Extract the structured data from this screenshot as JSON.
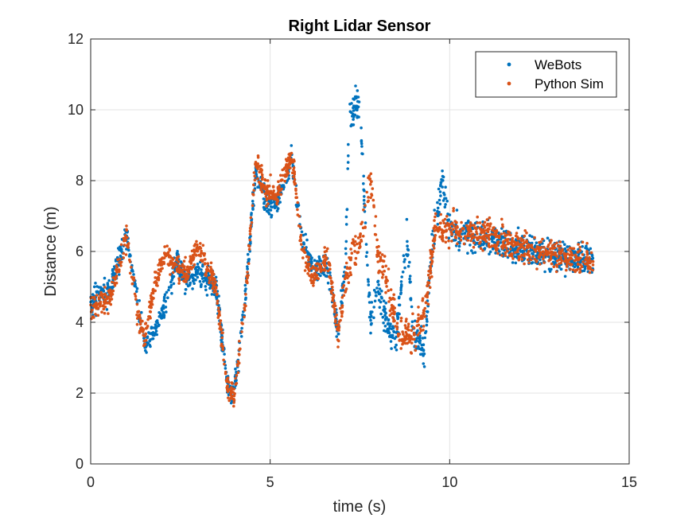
{
  "chart_data": {
    "type": "scatter",
    "title": "Right Lidar Sensor",
    "xlabel": "time (s)",
    "ylabel": "Distance (m)",
    "xlim": [
      0,
      15
    ],
    "ylim": [
      0,
      12
    ],
    "xticks": [
      0,
      5,
      10,
      15
    ],
    "yticks": [
      0,
      2,
      4,
      6,
      8,
      10,
      12
    ],
    "grid": true,
    "legend_position": "top-right",
    "series": [
      {
        "name": "WeBots",
        "color": "#0072BD",
        "approx_trend": [
          [
            0.0,
            4.6
          ],
          [
            0.5,
            4.8
          ],
          [
            1.0,
            6.5
          ],
          [
            1.3,
            4.6
          ],
          [
            1.5,
            3.4
          ],
          [
            1.8,
            3.8
          ],
          [
            2.1,
            4.5
          ],
          [
            2.4,
            5.7
          ],
          [
            2.7,
            5.1
          ],
          [
            3.0,
            5.4
          ],
          [
            3.5,
            5.0
          ],
          [
            3.8,
            2.3
          ],
          [
            4.0,
            1.9
          ],
          [
            4.3,
            4.7
          ],
          [
            4.6,
            8.3
          ],
          [
            4.9,
            7.3
          ],
          [
            5.2,
            7.4
          ],
          [
            5.6,
            8.6
          ],
          [
            5.9,
            6.3
          ],
          [
            6.2,
            5.5
          ],
          [
            6.6,
            5.5
          ],
          [
            6.9,
            3.7
          ],
          [
            7.1,
            5.6
          ],
          [
            7.2,
            9.8
          ],
          [
            7.5,
            10.3
          ],
          [
            7.6,
            7.8
          ],
          [
            7.8,
            4.0
          ],
          [
            8.0,
            5.0
          ],
          [
            8.2,
            4.1
          ],
          [
            8.5,
            3.5
          ],
          [
            8.8,
            6.5
          ],
          [
            9.0,
            3.6
          ],
          [
            9.3,
            3.2
          ],
          [
            9.5,
            6.0
          ],
          [
            9.8,
            8.0
          ],
          [
            10.0,
            6.6
          ],
          [
            11.0,
            6.4
          ],
          [
            12.0,
            6.1
          ],
          [
            13.0,
            5.9
          ],
          [
            14.0,
            5.7
          ]
        ]
      },
      {
        "name": "Python Sim",
        "color": "#D95319",
        "approx_trend": [
          [
            0.0,
            4.5
          ],
          [
            0.5,
            4.6
          ],
          [
            1.0,
            6.4
          ],
          [
            1.3,
            4.3
          ],
          [
            1.5,
            3.5
          ],
          [
            1.8,
            5.1
          ],
          [
            2.1,
            6.0
          ],
          [
            2.4,
            5.5
          ],
          [
            2.7,
            5.4
          ],
          [
            3.0,
            6.2
          ],
          [
            3.5,
            4.9
          ],
          [
            3.8,
            2.2
          ],
          [
            4.0,
            1.9
          ],
          [
            4.3,
            4.5
          ],
          [
            4.6,
            8.5
          ],
          [
            4.9,
            7.7
          ],
          [
            5.2,
            7.6
          ],
          [
            5.6,
            8.8
          ],
          [
            5.9,
            6.0
          ],
          [
            6.2,
            5.3
          ],
          [
            6.6,
            5.8
          ],
          [
            6.9,
            3.6
          ],
          [
            7.1,
            5.2
          ],
          [
            7.3,
            6.0
          ],
          [
            7.5,
            6.2
          ],
          [
            7.8,
            8.0
          ],
          [
            8.0,
            6.0
          ],
          [
            8.3,
            5.0
          ],
          [
            8.6,
            3.6
          ],
          [
            9.0,
            3.6
          ],
          [
            9.3,
            4.3
          ],
          [
            9.6,
            6.6
          ],
          [
            10.0,
            6.6
          ],
          [
            11.0,
            6.5
          ],
          [
            12.0,
            6.1
          ],
          [
            13.0,
            5.9
          ],
          [
            14.0,
            5.7
          ]
        ]
      }
    ]
  }
}
